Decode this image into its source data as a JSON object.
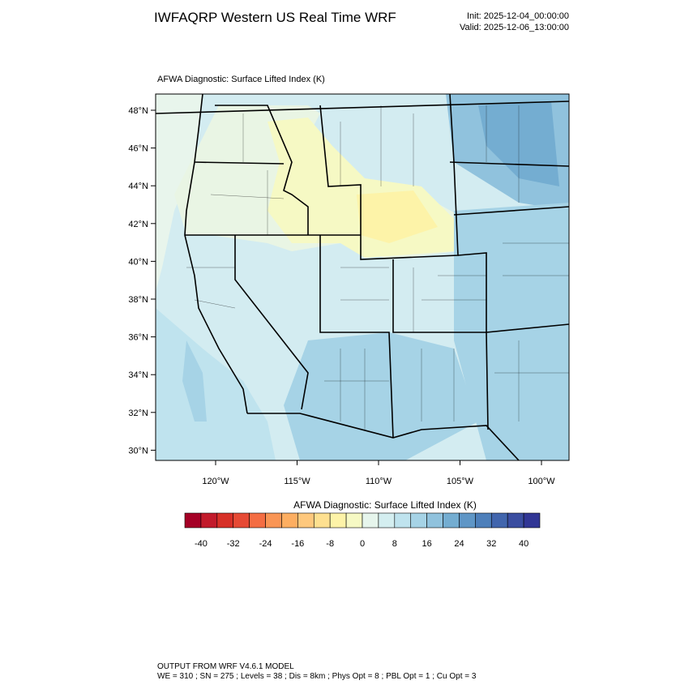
{
  "header": {
    "title": "IWFAQRP Western US Real Time WRF",
    "init": "Init: 2025-12-04_00:00:00",
    "valid": "Valid: 2025-12-06_13:00:00"
  },
  "map": {
    "title": "AFWA Diagnostic: Surface Lifted Index   (K)",
    "lat_labels": [
      "48°N",
      "46°N",
      "44°N",
      "42°N",
      "40°N",
      "38°N",
      "36°N",
      "34°N",
      "32°N",
      "30°N"
    ],
    "lon_labels": [
      "120°W",
      "115°W",
      "110°W",
      "105°W",
      "100°W"
    ]
  },
  "colorbar": {
    "title": "AFWA Diagnostic: Surface Lifted Index  (K)",
    "colors": [
      "#a50026",
      "#c21a2b",
      "#d73027",
      "#e64a35",
      "#f46d43",
      "#f99555",
      "#fdae61",
      "#fec87d",
      "#fee090",
      "#fdf3a8",
      "#f6f9c4",
      "#e6f5ec",
      "#d4eef0",
      "#bfe3ee",
      "#a6d3e6",
      "#90c2dd",
      "#74add1",
      "#5f96c6",
      "#4d7fba",
      "#4165ad",
      "#3a4da0",
      "#313695"
    ],
    "labels": [
      "-40",
      "-32",
      "-24",
      "-16",
      "-8",
      "0",
      "8",
      "16",
      "24",
      "32",
      "40"
    ]
  },
  "footer": {
    "line1": "OUTPUT FROM WRF V4.6.1 MODEL",
    "line2": "WE = 310 ; SN = 275 ; Levels = 38 ; Dis = 8km ; Phys Opt = 8 ; PBL Opt = 1 ; Cu Opt = 3"
  }
}
